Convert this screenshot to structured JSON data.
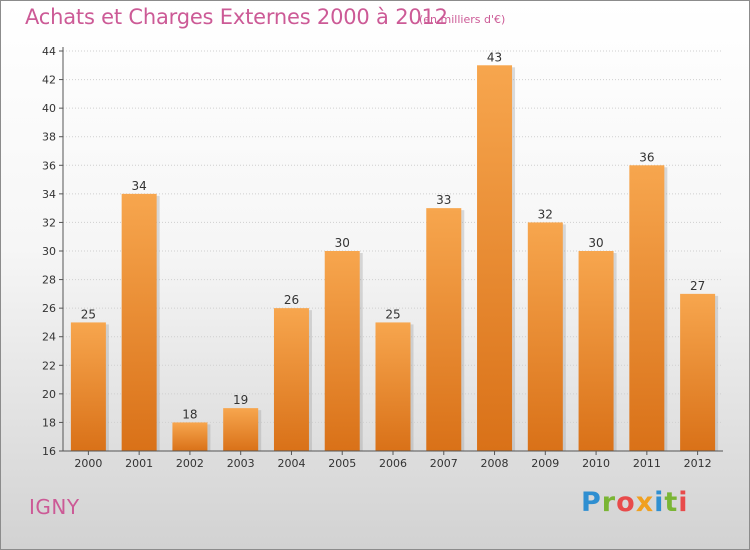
{
  "header": {
    "title": "Achats et Charges Externes 2000 à 2012",
    "subtitle": "(en milliers d'€)"
  },
  "footer": {
    "location": "IGNY",
    "brand": "Proxiti",
    "brand_colors": [
      "#2f8fd1",
      "#7ab534",
      "#e84a4a",
      "#f0a020",
      "#2f8fd1",
      "#7ab534",
      "#e84a4a"
    ]
  },
  "chart_data": {
    "type": "bar",
    "categories": [
      "2000",
      "2001",
      "2002",
      "2003",
      "2004",
      "2005",
      "2006",
      "2007",
      "2008",
      "2009",
      "2010",
      "2011",
      "2012"
    ],
    "values": [
      25,
      34,
      18,
      19,
      26,
      30,
      25,
      33,
      43,
      32,
      30,
      36,
      27
    ],
    "ylim": [
      16,
      44
    ],
    "yticks": [
      16,
      18,
      20,
      22,
      24,
      26,
      28,
      30,
      32,
      34,
      36,
      38,
      40,
      42,
      44
    ],
    "grid": true,
    "bar_color_top": "#f7a64e",
    "bar_color_bottom": "#d97118"
  }
}
